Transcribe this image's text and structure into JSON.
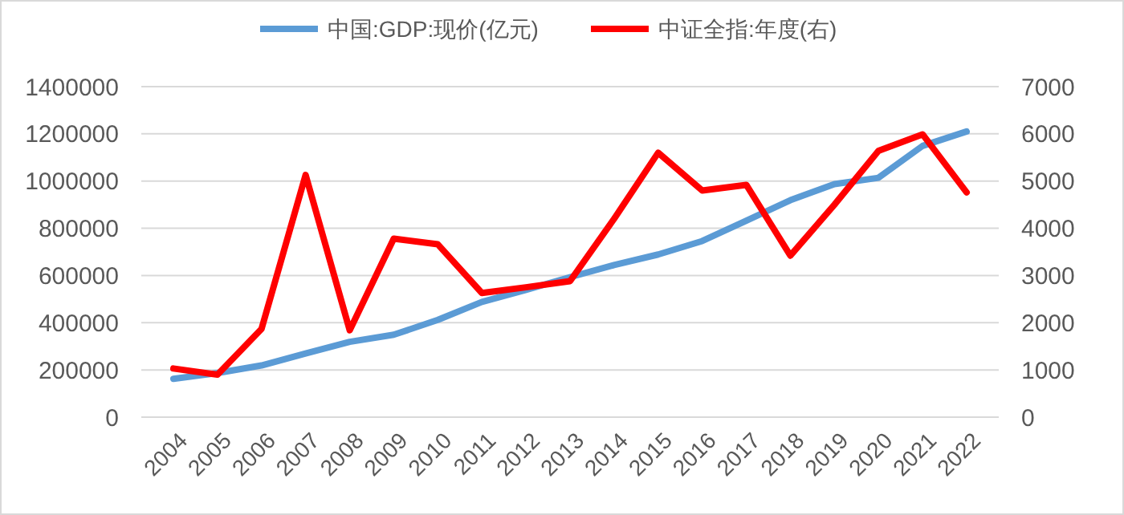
{
  "chart_data": {
    "type": "line",
    "categories": [
      "2004",
      "2005",
      "2006",
      "2007",
      "2008",
      "2009",
      "2010",
      "2011",
      "2012",
      "2013",
      "2014",
      "2015",
      "2016",
      "2017",
      "2018",
      "2019",
      "2020",
      "2021",
      "2022"
    ],
    "series": [
      {
        "name": "中国:GDP:现价(亿元)",
        "color": "#5b9bd5",
        "values": [
          162000,
          187000,
          219000,
          270000,
          319000,
          349000,
          412000,
          488000,
          539000,
          593000,
          644000,
          689000,
          746000,
          832000,
          919000,
          987000,
          1014000,
          1149000,
          1210000
        ]
      },
      {
        "name": "中证全指:年度(右)",
        "color": "#ff0000",
        "axis": "y2",
        "values": [
          1030,
          900,
          1870,
          5130,
          1840,
          3780,
          3660,
          2630,
          2750,
          2880,
          4200,
          5600,
          4800,
          4920,
          3420,
          4500,
          5640,
          5990,
          4760
        ]
      }
    ],
    "ylim": [
      0,
      1400000
    ],
    "yticks": [
      0,
      200000,
      400000,
      600000,
      800000,
      1000000,
      1200000,
      1400000
    ],
    "y2lim": [
      0,
      7000
    ],
    "y2ticks": [
      0,
      1000,
      2000,
      3000,
      4000,
      5000,
      6000,
      7000
    ],
    "grid": "y",
    "legend": "top",
    "marker": "none",
    "line_style": "solid"
  }
}
